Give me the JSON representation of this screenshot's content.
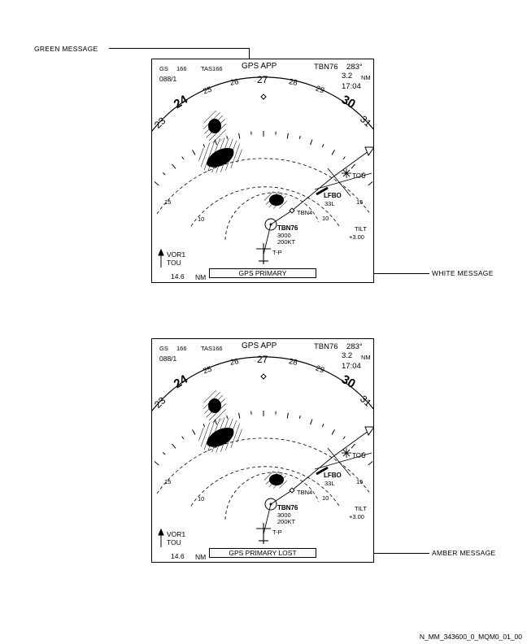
{
  "callouts": {
    "green_message": "GREEN MESSAGE",
    "white_message": "WHITE MESSAGE",
    "amber_message": "AMBER MESSAGE"
  },
  "displays": [
    {
      "gs_label": "GS",
      "gs_value": "166",
      "tas_label": "TAS166",
      "wind": "088/1",
      "mode": "GPS APP",
      "waypoint": "TBN76",
      "bearing": "283°",
      "distance": "3.2",
      "distance_unit": "NM",
      "eta": "17:04",
      "heading_marks": [
        "23",
        "24",
        "25",
        "26",
        "27",
        "28",
        "29",
        "30",
        "31"
      ],
      "range_rings": [
        "15",
        "10",
        "10",
        "15"
      ],
      "fix_tou": "TOU",
      "airport": "LFBO",
      "runway": "33L",
      "fix_tbn4": "TBN4",
      "tbn76_name": "TBN76",
      "tbn76_alt": "3000",
      "tbn76_speed": "200KT",
      "fix_tp": "T-P",
      "tilt_label": "TILT",
      "tilt_value": "+3.00",
      "nav_source": "VOR1",
      "nav_station": "TOU",
      "range_value": "14.6",
      "range_unit": "NM",
      "message": "GPS PRIMARY"
    },
    {
      "gs_label": "GS",
      "gs_value": "166",
      "tas_label": "TAS166",
      "wind": "088/1",
      "mode": "GPS APP",
      "waypoint": "TBN76",
      "bearing": "283°",
      "distance": "3.2",
      "distance_unit": "NM",
      "eta": "17:04",
      "heading_marks": [
        "23",
        "24",
        "25",
        "26",
        "27",
        "28",
        "29",
        "30",
        "31"
      ],
      "range_rings": [
        "15",
        "10",
        "10",
        "15"
      ],
      "fix_tou": "TOU",
      "airport": "LFBO",
      "runway": "33L",
      "fix_tbn4": "TBN4",
      "tbn76_name": "TBN76",
      "tbn76_alt": "3000",
      "tbn76_speed": "200KT",
      "fix_tp": "T-P",
      "tilt_label": "TILT",
      "tilt_value": "+3.00",
      "nav_source": "VOR1",
      "nav_station": "TOU",
      "range_value": "14.6",
      "range_unit": "NM",
      "message": "GPS PRIMARY LOST"
    }
  ],
  "figure_id": "N_MM_343600_0_MQM0_01_00"
}
